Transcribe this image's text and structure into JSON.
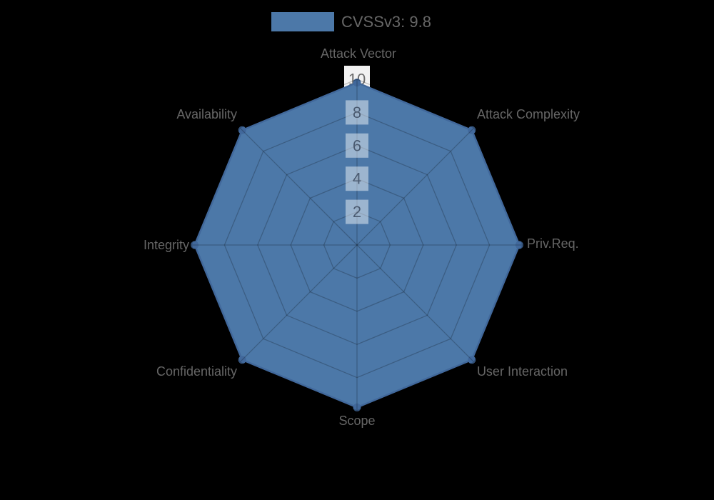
{
  "chart_data": {
    "type": "radar",
    "legend": {
      "label": "CVSSv3: 9.8",
      "position": "top"
    },
    "axes": [
      "Attack Vector",
      "Attack Complexity",
      "Priv.Req.",
      "User Interaction",
      "Scope",
      "Confidentiality",
      "Integrity",
      "Availability"
    ],
    "series": [
      {
        "name": "CVSSv3: 9.8",
        "values": [
          9.8,
          9.8,
          9.8,
          9.8,
          9.8,
          9.8,
          9.8,
          9.8
        ]
      }
    ],
    "ticks": [
      2,
      4,
      6,
      8,
      10
    ],
    "axis_range": [
      0,
      10
    ],
    "grid": true,
    "colors": {
      "background": "#000000",
      "series_fill": "#4c78a8",
      "series_stroke": "#41689b",
      "grid_line": "rgba(0,0,0,0.22)",
      "tick_box_inner": "rgba(255,255,255,0.45)",
      "tick_box_outer": "#f2f2f2",
      "tick_text_inner": "#4b5b71",
      "tick_text_outer": "#6c6c6c",
      "axis_label_text": "#666666",
      "legend_text": "#666666"
    }
  }
}
